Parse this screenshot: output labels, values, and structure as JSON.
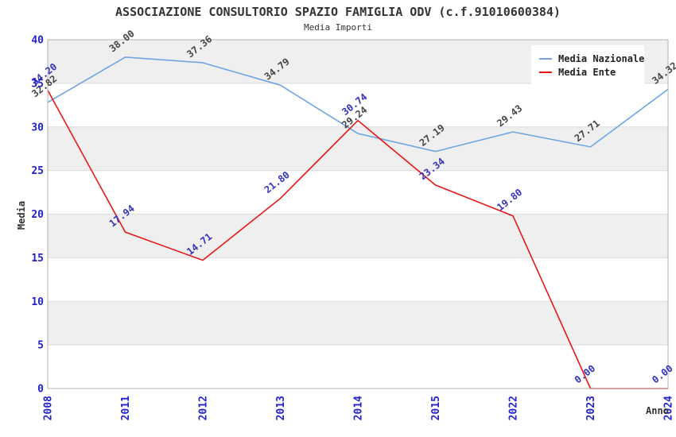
{
  "header": {
    "title": "ASSOCIAZIONE CONSULTORIO SPAZIO FAMIGLIA ODV (c.f.91010600384)",
    "subtitle": "Media Importi"
  },
  "chart_data": {
    "type": "line",
    "x": [
      "2008",
      "2011",
      "2012",
      "2013",
      "2014",
      "2015",
      "2022",
      "2023",
      "2024"
    ],
    "series": [
      {
        "name": "Media Nazionale",
        "color": "#6fa5e2",
        "label_color": "#454545",
        "values": [
          32.82,
          38.0,
          37.36,
          34.79,
          29.24,
          27.19,
          29.43,
          27.71,
          34.32
        ],
        "labels": [
          "32.82",
          "38.00",
          "37.36",
          "34.79",
          "29.24",
          "27.19",
          "29.43",
          "27.71",
          "34.32"
        ]
      },
      {
        "name": "Media Ente",
        "color": "#e81717",
        "label_color": "#3333bb",
        "values": [
          34.2,
          17.94,
          14.71,
          21.8,
          30.74,
          23.34,
          19.8,
          0.0,
          0.0
        ],
        "labels": [
          "34.20",
          "17.94",
          "14.71",
          "21.80",
          "30.74",
          "23.34",
          "19.80",
          "0.00",
          "0.00"
        ]
      }
    ],
    "xlabel": "Anno",
    "ylabel": "Media",
    "ylim": [
      0,
      40
    ],
    "ytick_step": 5,
    "y_tick_labels": [
      "0",
      "5",
      "10",
      "15",
      "20",
      "25",
      "30",
      "35",
      "40"
    ],
    "grid": "horizontal-bands-alternating",
    "legend_position": "top-right",
    "x_tick_rotation_deg": -90,
    "point_label_rotation_deg": -38
  },
  "colors": {
    "band_fill": "#efefef",
    "gridline": "#dcdcdc",
    "plot_border": "#b4b4b4",
    "tick_label": "#2222cc",
    "title_text": "#333333"
  }
}
